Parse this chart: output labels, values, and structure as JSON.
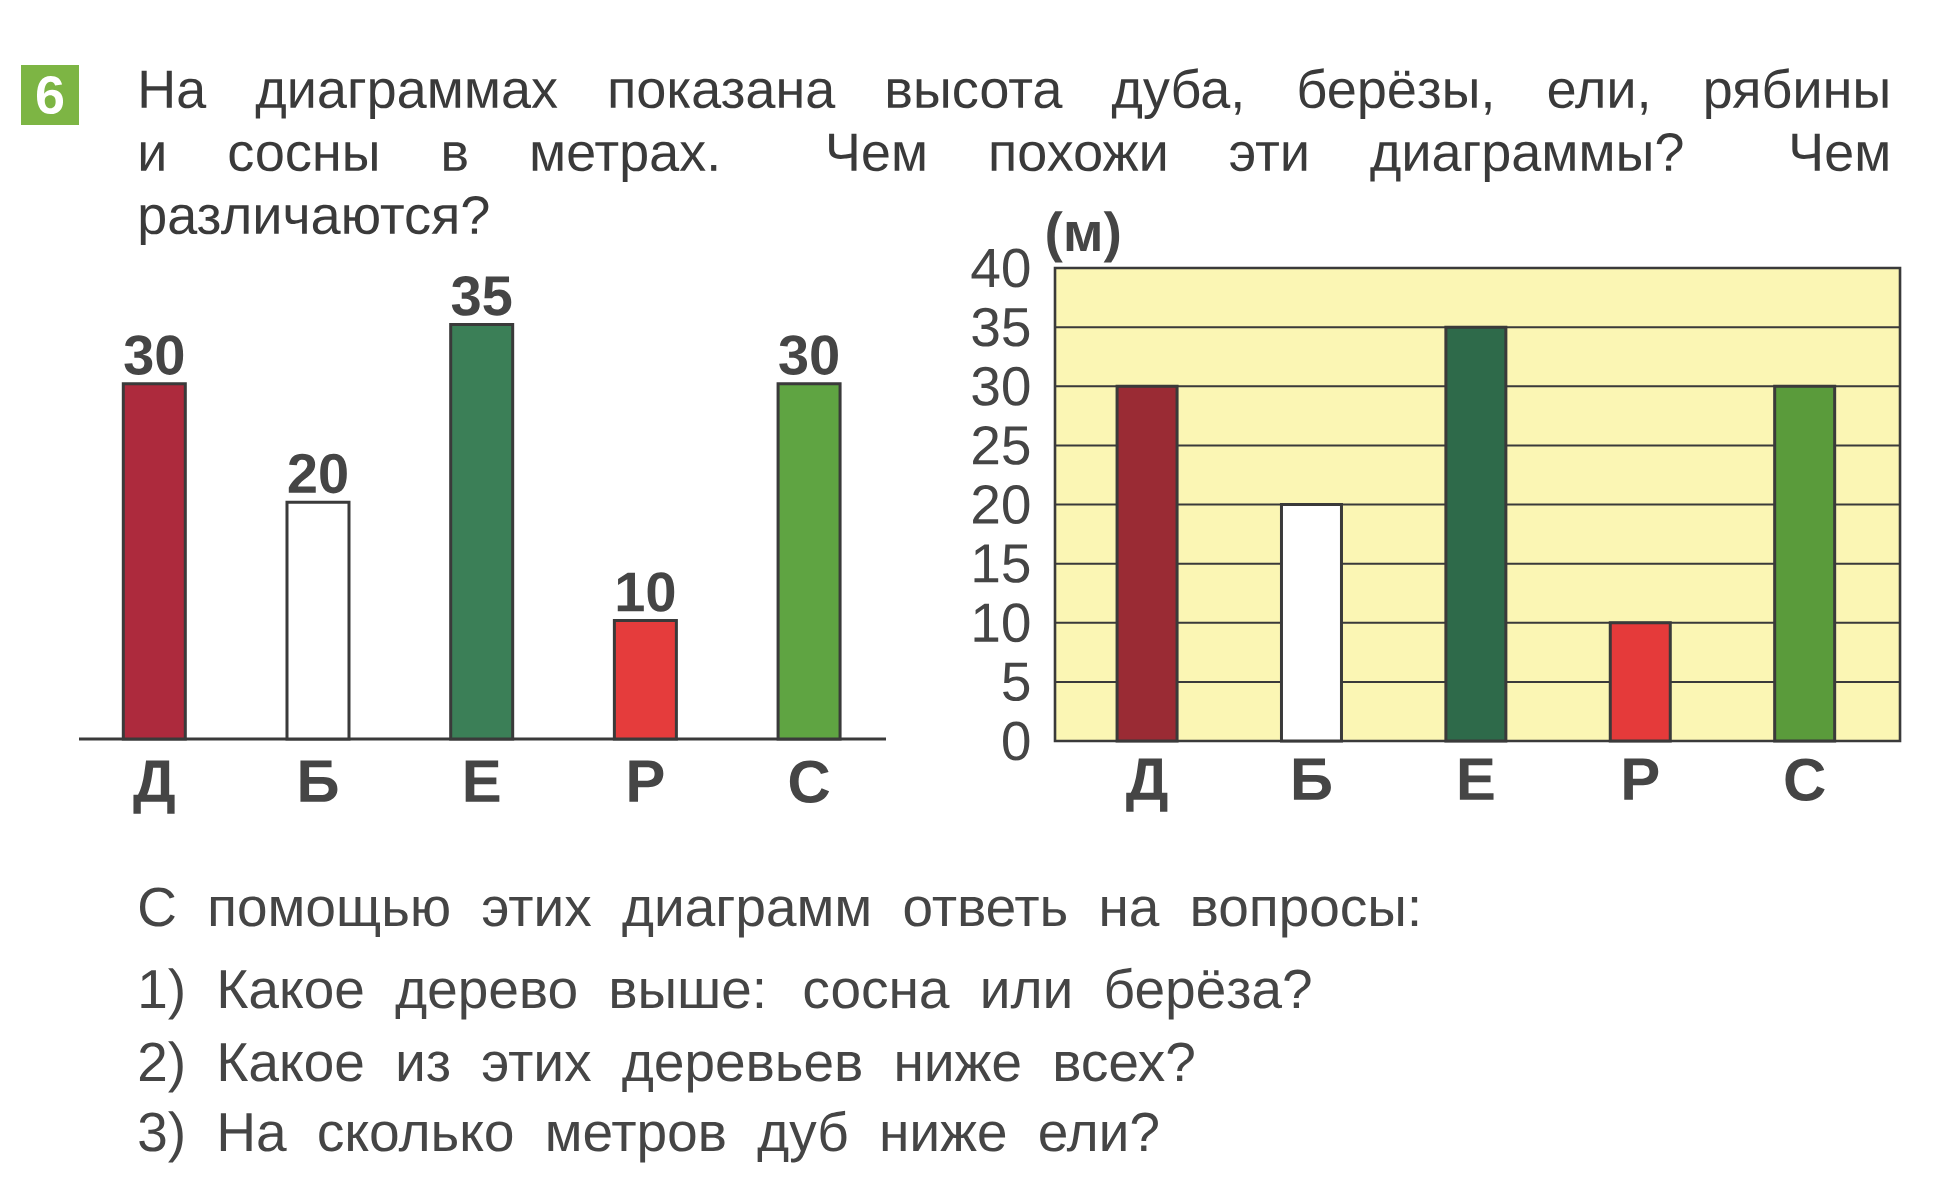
{
  "chart_data": [
    {
      "type": "bar",
      "title": "На диаграммах показана высота дуба, берёзы, ели, рябины и сосны в метрах. Чем похожи эти диаграммы? Чем различаются?",
      "categories": [
        "Д",
        "Б",
        "Е",
        "Р",
        "С"
      ],
      "values": [
        30,
        20,
        35,
        10,
        30
      ],
      "colors": [
        "#ad2a3d",
        "#ffffff",
        "#3b7f57",
        "#e53c3c",
        "#5fa442"
      ],
      "data_labels": true,
      "annotations": [
        "6",
        "С помощью этих диаграмм ответь на вопросы:",
        "1) Какое дерево выше: сосна или берёза?",
        "2) Какое из этих деревьев ниже всех?",
        "3) На сколько метров дуб ниже ели?"
      ]
    },
    {
      "type": "bar",
      "ylabel": "(м)",
      "categories": [
        "Д",
        "Б",
        "Е",
        "Р",
        "С"
      ],
      "values": [
        30,
        20,
        35,
        10,
        30
      ],
      "colors": [
        "#9a2b34",
        "#ffffff",
        "#2e6a4a",
        "#e53a3a",
        "#5a9b3b"
      ],
      "ylim": [
        0,
        40
      ],
      "yticks": [
        0,
        5,
        10,
        15,
        20,
        25,
        30,
        35,
        40
      ],
      "grid": "y"
    }
  ]
}
